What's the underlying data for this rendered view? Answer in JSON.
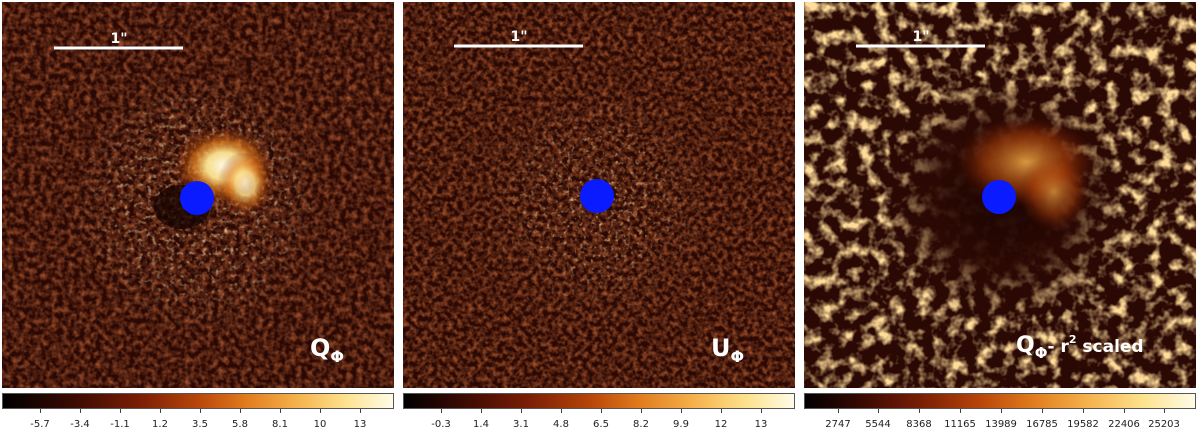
{
  "panels": [
    {
      "label_main": "Q",
      "label_sub": "Φ",
      "label_suffix": "",
      "label_sup": "",
      "label_tail": "",
      "scale_label": "1\"",
      "ticks": [
        "-5.7",
        "-3.4",
        "-1.1",
        "1.2",
        "3.5",
        "5.8",
        "8.1",
        "10",
        "13"
      ],
      "disk_brightness": 1.0,
      "noise_level": 0.35
    },
    {
      "label_main": "U",
      "label_sub": "Φ",
      "label_suffix": "",
      "label_sup": "",
      "label_tail": "",
      "scale_label": "1\"",
      "ticks": [
        "-0.3",
        "1.4",
        "3.1",
        "4.8",
        "6.5",
        "8.2",
        "9.9",
        "12",
        "13"
      ],
      "disk_brightness": 0.45,
      "noise_level": 0.38
    },
    {
      "label_main": "Q",
      "label_sub": "Φ",
      "label_suffix": "- r",
      "label_sup": "2",
      "label_tail": " scaled",
      "scale_label": "1\"",
      "ticks": [
        "2747",
        "5544",
        "8368",
        "11165",
        "13989",
        "16785",
        "19582",
        "22406",
        "25203"
      ],
      "disk_brightness": 0.7,
      "noise_level": 0.8
    }
  ],
  "colors": {
    "mask": "#0a1bff",
    "colormap": [
      "#000000",
      "#3a0a02",
      "#7a1e05",
      "#b8460a",
      "#e07a1c",
      "#f5b04a",
      "#fde38f",
      "#fffbe8"
    ]
  }
}
